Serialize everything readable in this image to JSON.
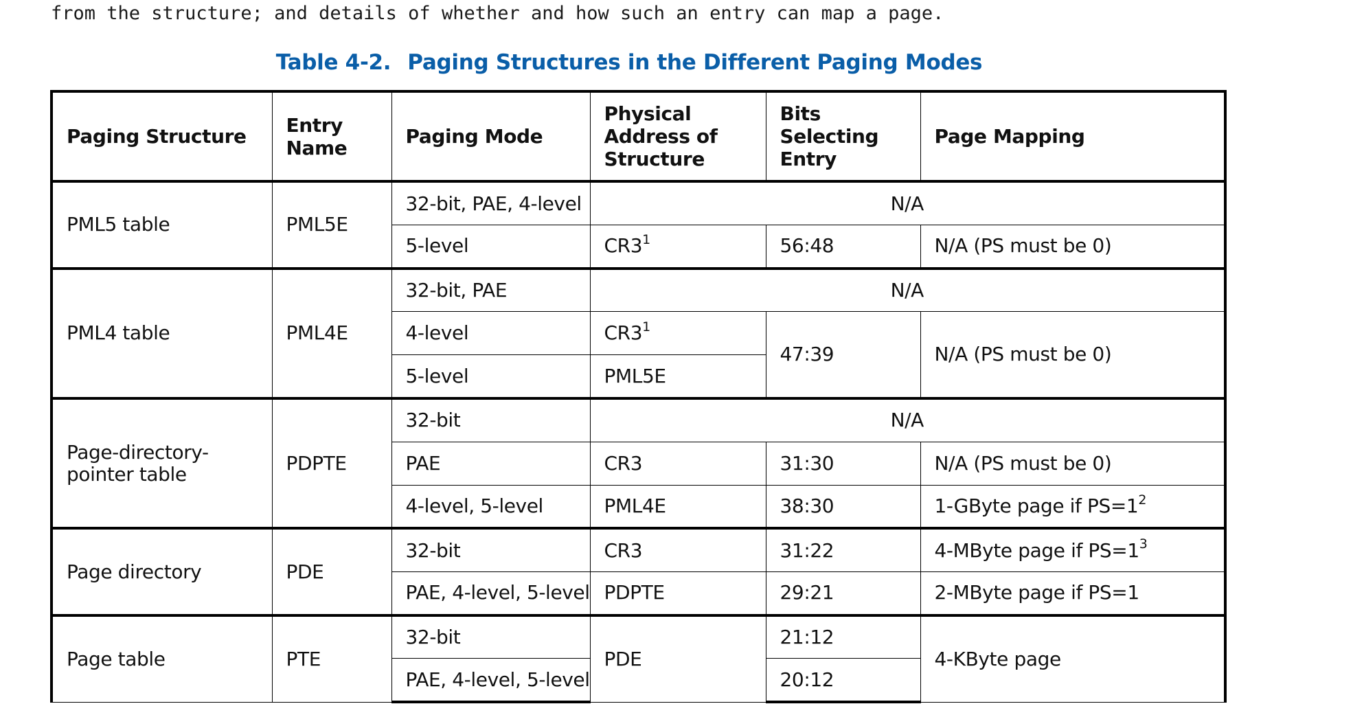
{
  "intro_text": "from the structure; and details of whether and how such an entry can map a page.",
  "caption": {
    "number": "Table 4-2.",
    "title": "Paging Structures in the Different Paging Modes"
  },
  "headers": {
    "paging_structure": "Paging Structure",
    "entry_name": "Entry Name",
    "paging_mode": "Paging Mode",
    "physical_address": "Physical Address of Structure",
    "bits_selecting": "Bits Selecting Entry",
    "page_mapping": "Page Mapping"
  },
  "pml5": {
    "structure": "PML5 table",
    "entry": "PML5E",
    "rows": [
      {
        "mode": "32-bit, PAE, 4-level",
        "na": "N/A"
      },
      {
        "mode": "5-level",
        "address": "CR3",
        "address_sup": "1",
        "bits": "56:48",
        "mapping": "N/A (PS must be 0)"
      }
    ]
  },
  "pml4": {
    "structure": "PML4 table",
    "entry": "PML4E",
    "bits": "47:39",
    "mapping": "N/A (PS must be 0)",
    "rows": [
      {
        "mode": "32-bit, PAE",
        "na": "N/A"
      },
      {
        "mode": "4-level",
        "address": "CR3",
        "address_sup": "1"
      },
      {
        "mode": "5-level",
        "address": "PML5E"
      }
    ]
  },
  "pdpt": {
    "structure": "Page-directory-pointer table",
    "entry": "PDPTE",
    "rows": [
      {
        "mode": "32-bit",
        "na": "N/A"
      },
      {
        "mode": "PAE",
        "address": "CR3",
        "bits": "31:30",
        "mapping": "N/A (PS must be 0)"
      },
      {
        "mode": "4-level, 5-level",
        "address": "PML4E",
        "bits": "38:30",
        "mapping": "1-GByte page if PS=1",
        "mapping_sup": "2"
      }
    ]
  },
  "pd": {
    "structure": "Page directory",
    "entry": "PDE",
    "rows": [
      {
        "mode": "32-bit",
        "address": "CR3",
        "bits": "31:22",
        "mapping": "4-MByte page if PS=1",
        "mapping_sup": "3"
      },
      {
        "mode": "PAE, 4-level, 5-level",
        "address": "PDPTE",
        "bits": "29:21",
        "mapping": "2-MByte page if PS=1"
      }
    ]
  },
  "pt": {
    "structure": "Page table",
    "entry": "PTE",
    "address": "PDE",
    "mapping": "4-KByte page",
    "rows": [
      {
        "mode": "32-bit",
        "bits": "21:12"
      },
      {
        "mode": "PAE, 4-level, 5-level",
        "bits": "20:12"
      }
    ]
  }
}
